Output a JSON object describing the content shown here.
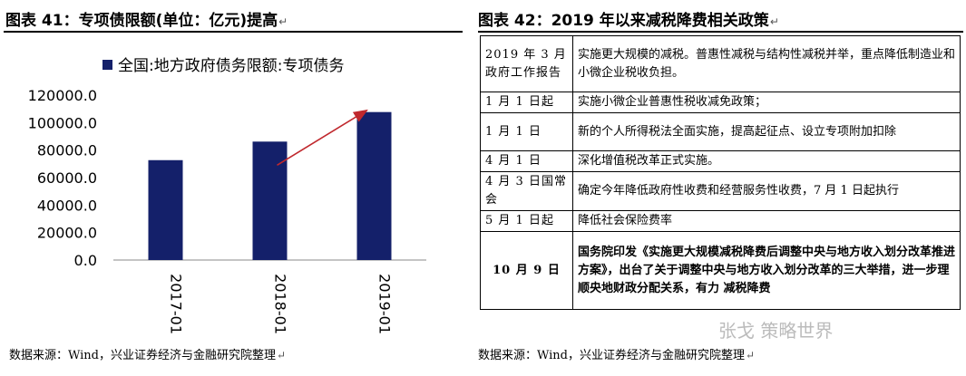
{
  "left": {
    "title": "图表 41：专项债限额(单位：亿元)提高",
    "source": "数据来源：Wind，兴业证券经济与金融研究院整理"
  },
  "right": {
    "title": "图表 42：2019 年以来减税降费相关政策",
    "source": "数据来源：Wind，兴业证券经济与金融研究院整理",
    "rows": [
      {
        "date": "2019 年 3 月政府工作报告",
        "text": "实施更大规模的减税。普惠性减税与结构性减税并举，重点降低制造业和小微企业税收负担。",
        "bold": false
      },
      {
        "date": "1 月 1 日起",
        "text": "实施小微企业普惠性税收减免政策；",
        "bold": false
      },
      {
        "date": "1 月 1 日",
        "text": "新的个人所得税法全面实施，提高起征点、设立专项附加扣除",
        "bold": false
      },
      {
        "date": "4 月 1 日",
        "text": "深化增值税改革正式实施。",
        "bold": false
      },
      {
        "date": "4 月 3 日国常会",
        "text": "确定今年降低政府性收费和经营服务性收费，7 月 1 日起执行",
        "bold": false
      },
      {
        "date": "5 月 1 日起",
        "text": "降低社会保险费率",
        "bold": false
      },
      {
        "date": "10 月 9 日",
        "text": "国务院印发《实施更大规模减税降费后调整中央与地方收入划分改革推进方案》，出台了关于调整中央与地方收入划分改革的三大举措，进一步理顺央地财政分配关系，有力 减税降费",
        "bold": true
      }
    ]
  },
  "watermark": "张戈 策略世界",
  "return_mark": "↵",
  "chart_data": {
    "type": "bar",
    "legend": "全国:地方政府债务限额:专项债务",
    "categories": [
      "2017-01",
      "2018-01",
      "2019-01"
    ],
    "values": [
      72685,
      86185,
      107685
    ],
    "ylim": [
      0,
      120000
    ],
    "yticks": [
      "0.0",
      "20000.0",
      "40000.0",
      "60000.0",
      "80000.0",
      "100000.0",
      "120000.0"
    ],
    "bar_color": "#14206a",
    "arrow_color": "#c0282d",
    "grid": false
  }
}
